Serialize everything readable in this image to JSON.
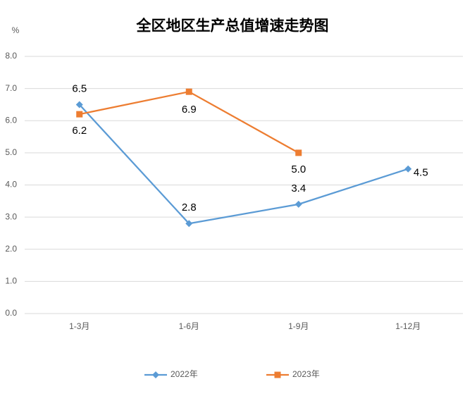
{
  "chart_data": {
    "type": "line",
    "title": "全区地区生产总值增速走势图",
    "y_label": "%",
    "categories": [
      "1-3月",
      "1-6月",
      "1-9月",
      "1-12月"
    ],
    "series": [
      {
        "name": "2022年",
        "color": "#5b9bd5",
        "marker": "diamond",
        "values": [
          6.5,
          2.8,
          3.4,
          4.5
        ],
        "value_labels": [
          "6.5",
          "2.8",
          "3.4",
          "4.5"
        ]
      },
      {
        "name": "2023年",
        "color": "#ed7d31",
        "marker": "square",
        "values": [
          6.2,
          6.9,
          5.0,
          null
        ],
        "value_labels": [
          "6.2",
          "6.9",
          "5.0",
          null
        ]
      }
    ],
    "ylim": [
      0,
      8
    ],
    "yticks": [
      {
        "value": 0,
        "label": "0.0"
      },
      {
        "value": 1,
        "label": "1.0"
      },
      {
        "value": 2,
        "label": "2.0"
      },
      {
        "value": 3,
        "label": "3.0"
      },
      {
        "value": 4,
        "label": "4.0"
      },
      {
        "value": 5,
        "label": "5.0"
      },
      {
        "value": 6,
        "label": "6.0"
      },
      {
        "value": 7,
        "label": "7.0"
      },
      {
        "value": 8,
        "label": "8.0"
      }
    ],
    "grid": true,
    "legend": "bottom"
  }
}
